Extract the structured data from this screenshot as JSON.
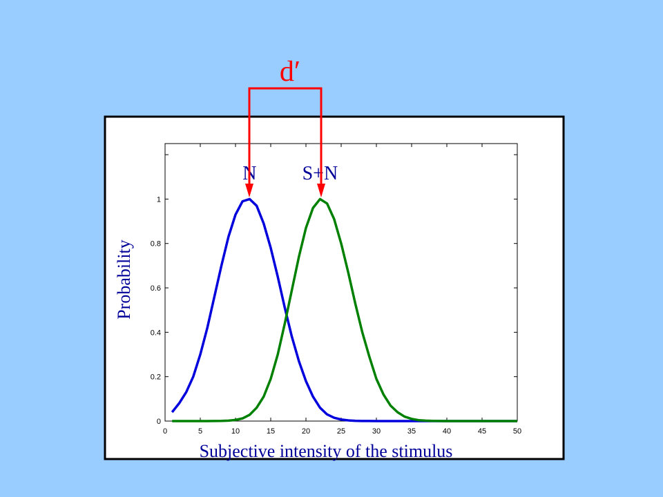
{
  "slide": {
    "background_color": "#99ccff",
    "dprime_label": "d′",
    "dprime_color": "#ff0000"
  },
  "chart_data": {
    "type": "line",
    "title": "",
    "xlabel": "Subjective intensity of the stimulus",
    "ylabel": "Probability",
    "xlim": [
      0,
      50
    ],
    "ylim": [
      0,
      1.25
    ],
    "xticks": [
      0,
      5,
      10,
      15,
      20,
      25,
      30,
      35,
      40,
      45,
      50
    ],
    "yticks": [
      0,
      0.2,
      0.4,
      0.6,
      0.8,
      1
    ],
    "grid": false,
    "x": [
      1,
      2,
      3,
      4,
      5,
      6,
      7,
      8,
      9,
      10,
      11,
      12,
      13,
      14,
      15,
      16,
      17,
      18,
      19,
      20,
      21,
      22,
      23,
      24,
      25,
      26,
      27,
      28,
      29,
      30,
      31,
      32,
      33,
      34,
      35,
      36,
      37,
      38,
      39,
      40,
      41,
      42,
      43,
      44,
      45,
      46,
      47,
      48,
      49,
      50
    ],
    "series": [
      {
        "name": "N",
        "color": "#0000dd",
        "values": [
          0.04,
          0.08,
          0.13,
          0.2,
          0.3,
          0.42,
          0.56,
          0.7,
          0.83,
          0.93,
          0.99,
          1.0,
          0.97,
          0.89,
          0.78,
          0.65,
          0.51,
          0.38,
          0.27,
          0.18,
          0.11,
          0.06,
          0.03,
          0.015,
          0.007,
          0.003,
          0.001,
          0.0005,
          0.0002,
          0.0001,
          0,
          0,
          0,
          0,
          0,
          0,
          0,
          0,
          0,
          0,
          0,
          0,
          0,
          0,
          0,
          0,
          0,
          0,
          0,
          0
        ]
      },
      {
        "name": "S+N",
        "color": "#008000",
        "values": [
          0,
          0,
          0,
          0,
          0,
          0,
          0.0002,
          0.0006,
          0.002,
          0.005,
          0.012,
          0.028,
          0.06,
          0.11,
          0.19,
          0.3,
          0.44,
          0.59,
          0.74,
          0.87,
          0.96,
          1.0,
          0.98,
          0.91,
          0.8,
          0.67,
          0.53,
          0.4,
          0.29,
          0.19,
          0.12,
          0.07,
          0.04,
          0.02,
          0.01,
          0.004,
          0.002,
          0.0008,
          0.0003,
          0.0001,
          0,
          0,
          0,
          0,
          0,
          0,
          0,
          0,
          0,
          0
        ]
      }
    ],
    "annotations": [
      {
        "text": "N",
        "x": 12,
        "y": 1.12
      },
      {
        "text": "S+N",
        "x": 22,
        "y": 1.12
      }
    ]
  }
}
